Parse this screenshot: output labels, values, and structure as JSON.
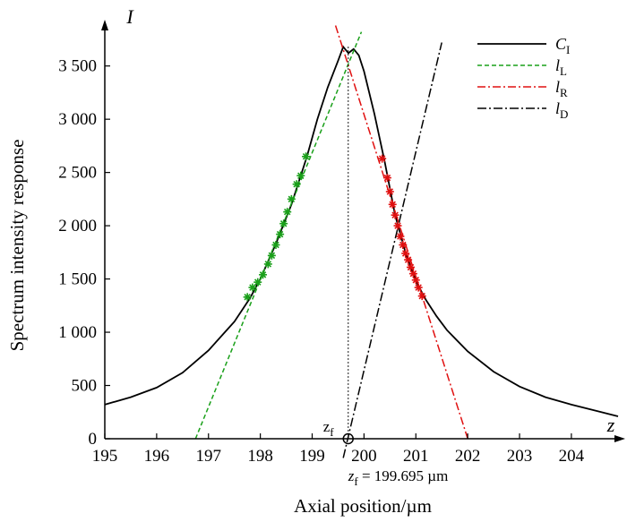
{
  "chart_data": {
    "type": "line",
    "xlabel": "Axial position/µm",
    "ylabel": "Spectrum intensity response",
    "x_axis_letter": "z",
    "y_axis_letter": "I",
    "xlim": [
      195,
      204.9
    ],
    "ylim": [
      0,
      3800
    ],
    "xticks": [
      195,
      196,
      197,
      198,
      199,
      200,
      201,
      202,
      203,
      204
    ],
    "xtick_labels": [
      "195",
      "196",
      "197",
      "198",
      "199",
      "200",
      "201",
      "202",
      "203",
      "204"
    ],
    "yticks": [
      0,
      500,
      1000,
      1500,
      2000,
      2500,
      3000,
      3500
    ],
    "ytick_labels": [
      "0",
      "500",
      "1 000",
      "1 500",
      "2 000",
      "2 500",
      "3 000",
      "3 500"
    ],
    "legend_position": "top-right",
    "grid": false,
    "series": [
      {
        "name": "C",
        "sub": "I",
        "style": "solid",
        "color": "#000000",
        "x": [
          195.0,
          195.5,
          196.0,
          196.5,
          197.0,
          197.5,
          197.8,
          198.0,
          198.3,
          198.6,
          198.9,
          199.1,
          199.3,
          199.5,
          199.6,
          199.7,
          199.75,
          199.8,
          199.9,
          200.0,
          200.2,
          200.4,
          200.6,
          200.8,
          201.0,
          201.2,
          201.4,
          201.6,
          201.8,
          202.0,
          202.5,
          203.0,
          203.5,
          204.0,
          204.5,
          204.9
        ],
        "y": [
          320,
          390,
          480,
          620,
          830,
          1100,
          1320,
          1500,
          1830,
          2200,
          2650,
          3000,
          3300,
          3550,
          3680,
          3620,
          3640,
          3660,
          3600,
          3450,
          3050,
          2600,
          2100,
          1750,
          1480,
          1300,
          1150,
          1020,
          920,
          820,
          630,
          490,
          390,
          320,
          260,
          210
        ]
      },
      {
        "name": "l",
        "sub": "L",
        "style": "dashed",
        "color": "#1aa01a",
        "x": [
          196.75,
          199.95
        ],
        "y": [
          0,
          3820
        ]
      },
      {
        "name": "l",
        "sub": "R",
        "style": "dashdot",
        "color": "#e01010",
        "x": [
          199.45,
          202.0
        ],
        "y": [
          3880,
          0
        ]
      },
      {
        "name": "l",
        "sub": "D",
        "style": "dashdotblack",
        "color": "#000000",
        "x": [
          199.6,
          201.5
        ],
        "y": [
          -180,
          3720
        ]
      }
    ],
    "markers_left": {
      "color": "#1aa01a",
      "x": [
        197.75,
        197.85,
        197.95,
        198.05,
        198.15,
        198.22,
        198.3,
        198.38,
        198.45,
        198.52,
        198.6,
        198.7,
        198.78,
        198.88
      ],
      "y": [
        1330,
        1420,
        1470,
        1540,
        1640,
        1720,
        1820,
        1920,
        2020,
        2130,
        2250,
        2390,
        2470,
        2650
      ]
    },
    "markers_right": {
      "color": "#e01010",
      "x": [
        200.35,
        200.45,
        200.5,
        200.55,
        200.6,
        200.65,
        200.7,
        200.75,
        200.8,
        200.85,
        200.9,
        200.95,
        201.0,
        201.05,
        201.12
      ],
      "y": [
        2630,
        2450,
        2320,
        2200,
        2100,
        2000,
        1900,
        1820,
        1740,
        1680,
        1610,
        1550,
        1490,
        1420,
        1340
      ]
    },
    "focus_point": {
      "x": 199.695,
      "y": 0
    },
    "focus_label": "z",
    "focus_label_sub": "f",
    "focus_annotation": "z",
    "focus_annotation_sub": "f",
    "focus_annotation_value": " = 199.695 µm"
  }
}
